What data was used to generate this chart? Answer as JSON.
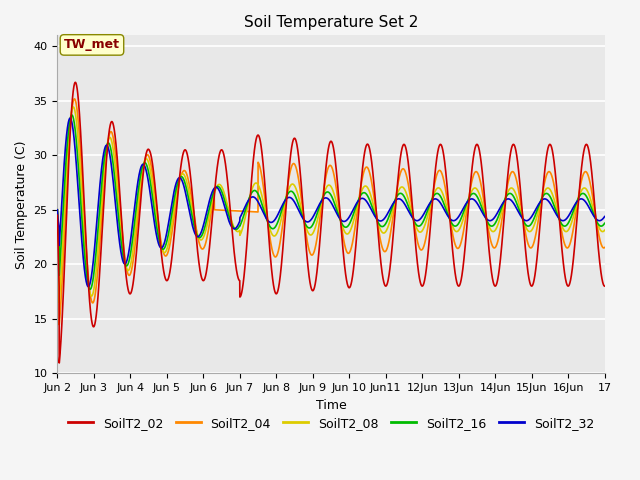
{
  "title": "Soil Temperature Set 2",
  "xlabel": "Time",
  "ylabel": "Soil Temperature (C)",
  "ylim": [
    10,
    41
  ],
  "xlim": [
    0,
    15
  ],
  "annotation": "TW_met",
  "series_labels": [
    "SoilT2_02",
    "SoilT2_04",
    "SoilT2_08",
    "SoilT2_16",
    "SoilT2_32"
  ],
  "series_colors": [
    "#cc0000",
    "#ff8800",
    "#ddcc00",
    "#00bb00",
    "#0000cc"
  ],
  "x_tick_positions": [
    0,
    1,
    2,
    3,
    4,
    5,
    6,
    7,
    8,
    9,
    10,
    11,
    12,
    13,
    14,
    15
  ],
  "x_tick_labels": [
    "Jun 2",
    "Jun 3",
    "Jun 4",
    "Jun 5",
    "Jun 6",
    "Jun 7",
    "Jun 8",
    "Jun 9",
    "Jun 10",
    "Jun11",
    "12Jun",
    "13Jun",
    "14Jun",
    "15Jun",
    "16Jun",
    "17"
  ],
  "y_tick_positions": [
    10,
    15,
    20,
    25,
    30,
    35,
    40
  ],
  "y_tick_labels": [
    "10",
    "15",
    "20",
    "25",
    "30",
    "35",
    "40"
  ],
  "fig_bg": "#f5f5f5",
  "ax_bg": "#e8e8e8",
  "grid_color": "#ffffff",
  "title_fontsize": 11,
  "label_fontsize": 9,
  "tick_fontsize": 8,
  "legend_fontsize": 9,
  "linewidth": 1.2
}
